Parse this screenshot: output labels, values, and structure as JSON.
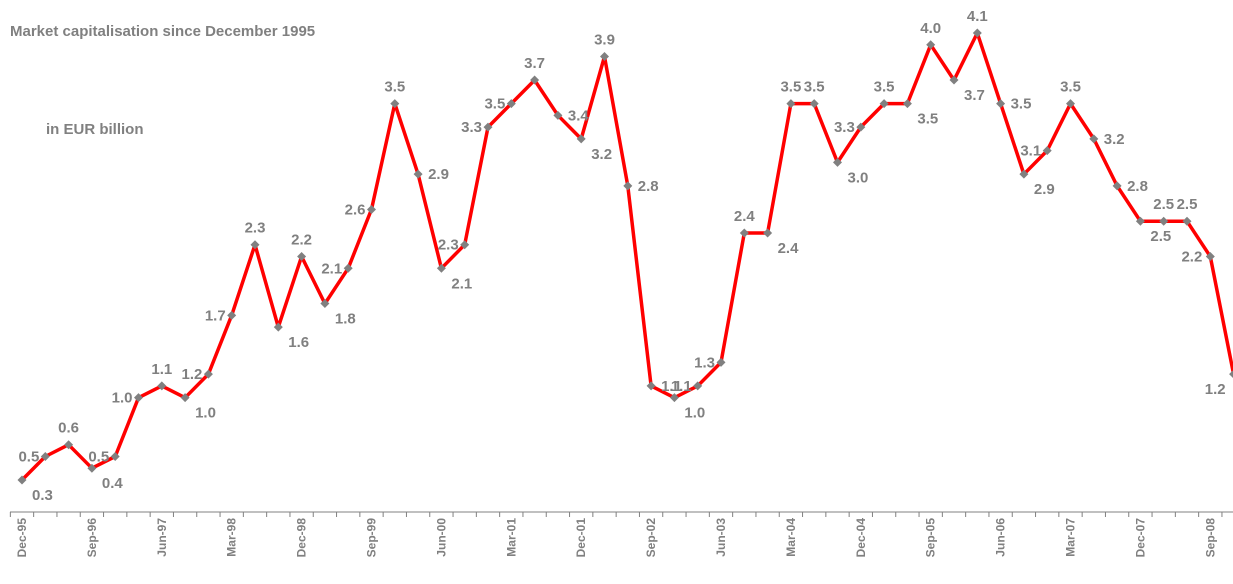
{
  "chart_data": {
    "type": "line",
    "title": "Market capitalisation since December 1995",
    "subtitle": "in EUR billion",
    "categories": [
      "Dec-95",
      null,
      null,
      "Sep-96",
      null,
      null,
      "Jun-97",
      null,
      null,
      "Mar-98",
      null,
      null,
      "Dec-98",
      null,
      null,
      "Sep-99",
      null,
      null,
      "Jun-00",
      null,
      null,
      "Mar-01",
      null,
      null,
      "Dec-01",
      null,
      null,
      "Sep-02",
      null,
      null,
      "Jun-03",
      null,
      null,
      "Mar-04",
      null,
      null,
      "Dec-04",
      null,
      null,
      "Sep-05",
      null,
      null,
      "Jun-06",
      null,
      null,
      "Mar-07",
      null,
      null,
      "Dec-07",
      null,
      null,
      "Sep-08",
      null
    ],
    "series": [
      {
        "name": "Market capitalisation",
        "color": "#ff0000",
        "marker_color": "#808080",
        "values": [
          0.3,
          0.5,
          0.6,
          0.4,
          0.5,
          1.0,
          1.1,
          1.0,
          1.2,
          1.7,
          2.3,
          1.6,
          2.2,
          1.8,
          2.1,
          2.6,
          3.5,
          2.9,
          2.1,
          2.3,
          3.3,
          3.5,
          3.7,
          3.4,
          3.2,
          3.9,
          2.8,
          1.1,
          1.0,
          1.1,
          1.3,
          2.4,
          2.4,
          3.5,
          3.5,
          3.0,
          3.3,
          3.5,
          3.5,
          4.0,
          3.7,
          4.1,
          3.5,
          2.9,
          3.1,
          3.5,
          3.2,
          2.8,
          2.5,
          2.5,
          2.5,
          2.2,
          1.2
        ],
        "value_labels": [
          "0.3",
          "0.5",
          "0.6",
          "0.4",
          "0.5",
          "1.0",
          "1.1",
          "1.0",
          "1.2",
          "1.7",
          "2.3",
          "1.6",
          "2.2",
          "1.8",
          "2.1",
          "2.6",
          "3.5",
          "2.9",
          "2.1",
          "2.3",
          "3.3",
          "3.5",
          "3.7",
          "3.4",
          "3.2",
          "3.9",
          "2.8",
          "1.1",
          "1.0",
          "1.1",
          "1.3",
          "2.4",
          "2.4",
          "3.5",
          "3.5",
          "3.0",
          "3.3",
          "3.5",
          "3.5",
          "4.0",
          "3.7",
          "4.1",
          "3.5",
          "2.9",
          "3.1",
          "3.5",
          "3.2",
          "2.8",
          "2.5",
          "2.5",
          "2.5",
          "2.2",
          "1.2"
        ]
      }
    ]
  }
}
